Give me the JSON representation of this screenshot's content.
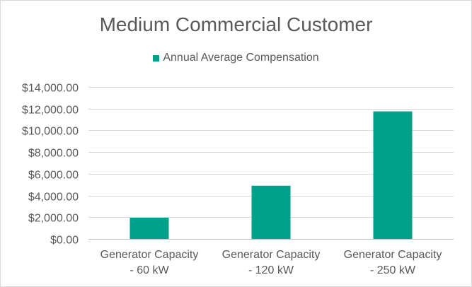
{
  "chart_data": {
    "type": "bar",
    "title": "Medium Commercial Customer",
    "categories": [
      [
        "Generator Capacity",
        "- 60 kW"
      ],
      [
        "Generator Capacity",
        "- 120 kW"
      ],
      [
        "Generator Capacity",
        "- 250 kW"
      ]
    ],
    "series": [
      {
        "name": "Annual Average Compensation",
        "values": [
          1950,
          4900,
          11750
        ],
        "color": "#00a08a"
      }
    ],
    "yticks": [
      0,
      2000,
      4000,
      6000,
      8000,
      10000,
      12000,
      14000
    ],
    "ytick_labels": [
      "$0.00",
      "$2,000.00",
      "$4,000.00",
      "$6,000.00",
      "$8,000.00",
      "$10,000.00",
      "$12,000.00",
      "$14,000.00"
    ],
    "ylim": [
      0,
      14000
    ],
    "xlabel": "",
    "ylabel": "",
    "grid": true,
    "legend": "top-center"
  }
}
